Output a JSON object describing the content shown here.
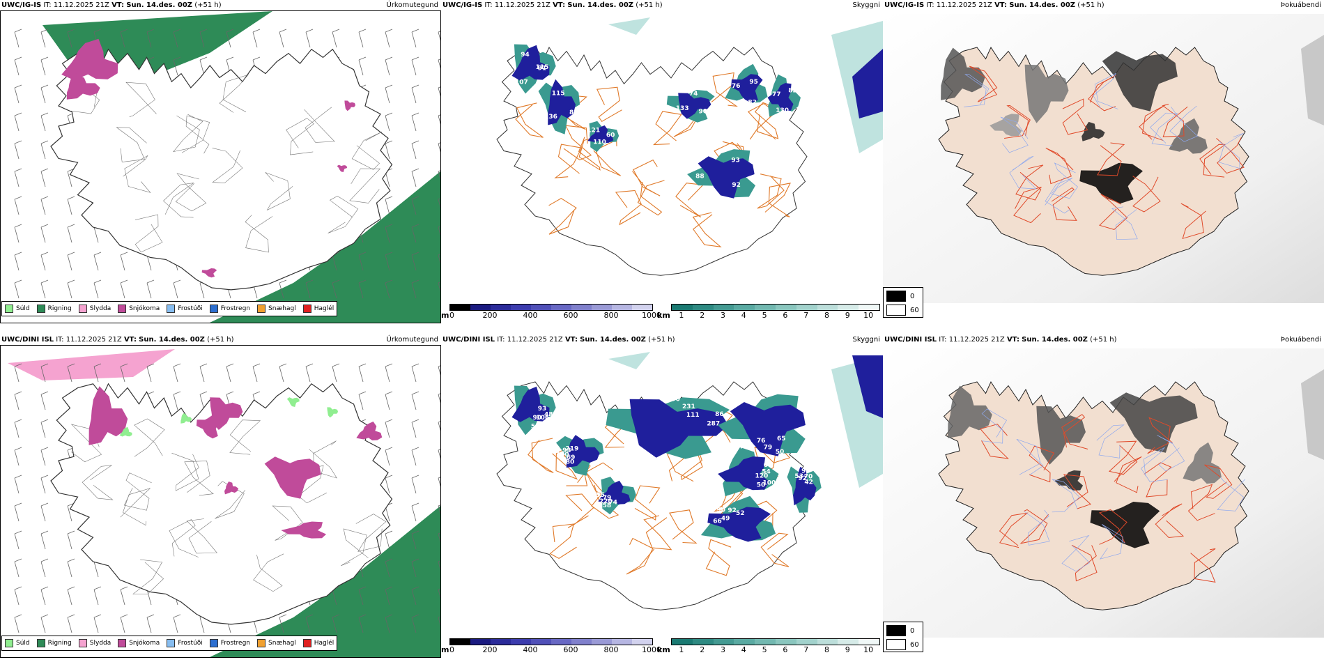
{
  "rows": [
    {
      "id": "ig",
      "model": "UWC/IG-IS",
      "it_label": "IT:",
      "it_value": "11.12.2025 21Z",
      "vt_label": "VT:",
      "vt_value": "Sun. 14.des. 00Z",
      "lead": "(+51 h)",
      "panels": [
        "Úrkomutegund",
        "Skyggni",
        "Þokuábendi"
      ],
      "vis_labels": [
        "115",
        "136",
        "74",
        "92",
        "76",
        "82",
        "110",
        "94",
        "83",
        "133",
        "93",
        "82",
        "77",
        "60",
        "107",
        "115",
        "90",
        "88",
        "95",
        "130",
        "121",
        "91"
      ]
    },
    {
      "id": "dini",
      "model": "UWC/DINI ISL",
      "it_label": "IT:",
      "it_value": "11.12.2025 21Z",
      "vt_label": "VT:",
      "vt_value": "Sun. 14.des. 00Z",
      "lead": "(+51 h)",
      "panels": [
        "Úrkomutegund",
        "Skyggni",
        "Þokuábendi"
      ],
      "vis_labels": [
        "93",
        "80",
        "90",
        "65",
        "66",
        "68",
        "74",
        "53",
        "48",
        "69",
        "231",
        "50",
        "49",
        "54",
        "58",
        "92",
        "106",
        "150",
        "111",
        "79",
        "90",
        "120",
        "220",
        "95",
        "90",
        "93",
        "86",
        "76",
        "92",
        "100",
        "79",
        "70",
        "58",
        "219",
        "287",
        "442",
        "52",
        "50",
        "55",
        "42"
      ]
    }
  ],
  "precip_legend": [
    {
      "label": "Súld",
      "color": "#90ee90"
    },
    {
      "label": "Rigning",
      "color": "#2e8b57"
    },
    {
      "label": "Slydda",
      "color": "#f5a3d0"
    },
    {
      "label": "Snjókoma",
      "color": "#c04b9a"
    },
    {
      "label": "Frostúði",
      "color": "#87bdf0"
    },
    {
      "label": "Frostregn",
      "color": "#2c6fd0"
    },
    {
      "label": "Snæhagl",
      "color": "#f0a030"
    },
    {
      "label": "Haglél",
      "color": "#e02020"
    }
  ],
  "ceiling_bar": {
    "unit": "m",
    "ticks": [
      "0",
      "200",
      "400",
      "600",
      "800",
      "1000"
    ],
    "colors": [
      "#000000",
      "#1a1a80",
      "#2b2b9a",
      "#3c3cae",
      "#5050b8",
      "#6868c4",
      "#8080cc",
      "#9a9ad6",
      "#b6b6e2",
      "#d2d2ee"
    ]
  },
  "vis_bar": {
    "unit": "km",
    "ticks": [
      "1",
      "2",
      "3",
      "4",
      "5",
      "6",
      "7",
      "8",
      "9",
      "10"
    ],
    "colors": [
      "#1a7a72",
      "#2e8a82",
      "#449a92",
      "#5aaaa2",
      "#72b8b0",
      "#8ac6be",
      "#a2d2cc",
      "#bcdeda",
      "#d6ebe8",
      "#f0f8f7"
    ]
  },
  "fog_key": [
    {
      "label": "0",
      "color": "#000000"
    },
    {
      "label": "60",
      "color": "#ffffff"
    }
  ],
  "colors": {
    "rain": "#2e8b57",
    "snow": "#c04b9a",
    "sleet": "#f5a3d0",
    "drizzle": "#90ee90",
    "ceiling": "#1f1f9c",
    "vis": "#3a9a90",
    "roads": "#e07a2a",
    "fog_land": "#f2dfd0",
    "fog_roads": "#e04a2a",
    "fog_rivers": "#8ea8ee"
  }
}
